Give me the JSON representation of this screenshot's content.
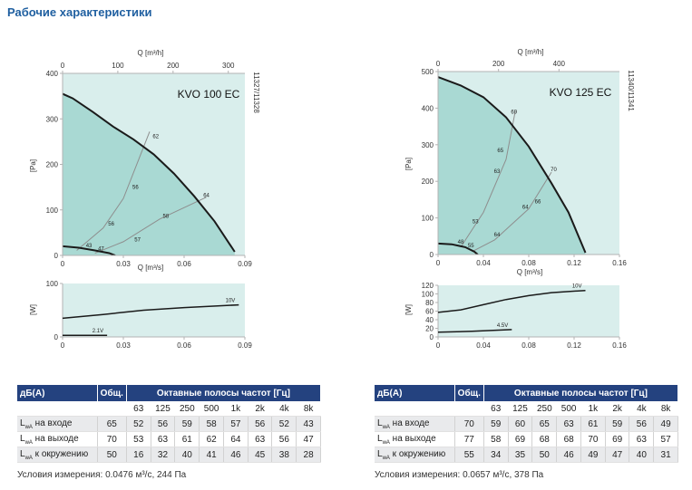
{
  "page_title": "Рабочие характеристики",
  "chart_data": [
    {
      "type": "line",
      "title": "KVO 100 EC",
      "code": "11327/11328",
      "top_xlabel": "Q [m³/h]",
      "top_ticks": [
        "0",
        "100",
        "200",
        "300"
      ],
      "top_tick_values": [
        0,
        100,
        200,
        300
      ],
      "xlabel": "Q [m³/s]",
      "ylabel": "[Pa]",
      "xlim": [
        0,
        0.09
      ],
      "ylim": [
        0,
        400
      ],
      "x_ticks": [
        "0",
        "0.03",
        "0.06",
        "0.09"
      ],
      "x_tick_values": [
        0,
        0.03,
        0.06,
        0.09
      ],
      "y_ticks": [
        "0",
        "100",
        "200",
        "300",
        "400"
      ],
      "y_tick_values": [
        0,
        100,
        200,
        300,
        400
      ],
      "series": [
        {
          "points": [
            [
              0,
              355
            ],
            [
              0.005,
              345
            ],
            [
              0.015,
              315
            ],
            [
              0.025,
              283
            ],
            [
              0.035,
              255
            ],
            [
              0.045,
              222
            ],
            [
              0.055,
              180
            ],
            [
              0.065,
              130
            ],
            [
              0.075,
              75
            ],
            [
              0.085,
              8
            ]
          ]
        },
        {
          "points": [
            [
              0,
              20
            ],
            [
              0.008,
              17
            ],
            [
              0.016,
              11
            ],
            [
              0.023,
              5
            ],
            [
              0.026,
              0
            ]
          ]
        }
      ],
      "system_curves": [
        {
          "points": [
            [
              0.007,
              11
            ],
            [
              0.02,
              60
            ],
            [
              0.03,
              125
            ],
            [
              0.043,
              272
            ]
          ]
        },
        {
          "points": [
            [
              0.016,
              5
            ],
            [
              0.03,
              30
            ],
            [
              0.048,
              80
            ],
            [
              0.071,
              128
            ]
          ]
        }
      ],
      "labels": [
        {
          "text": "62",
          "x": 0.046,
          "y": 262
        },
        {
          "text": "56",
          "x": 0.036,
          "y": 150
        },
        {
          "text": "56",
          "x": 0.024,
          "y": 70
        },
        {
          "text": "43",
          "x": 0.013,
          "y": 22
        },
        {
          "text": "47",
          "x": 0.019,
          "y": 15
        },
        {
          "text": "57",
          "x": 0.037,
          "y": 35
        },
        {
          "text": "58",
          "x": 0.051,
          "y": 87
        },
        {
          "text": "64",
          "x": 0.071,
          "y": 132
        }
      ],
      "power": {
        "ylabel": "[W]",
        "ylim": [
          0,
          100
        ],
        "y_ticks": [
          "0",
          "100"
        ],
        "y_tick_values": [
          0,
          100
        ],
        "series": [
          {
            "name": "10V",
            "points": [
              [
                0,
                35
              ],
              [
                0.02,
                42
              ],
              [
                0.04,
                50
              ],
              [
                0.06,
                55
              ],
              [
                0.087,
                60
              ]
            ]
          },
          {
            "name": "2.1V",
            "points": [
              [
                0,
                3
              ],
              [
                0.022,
                3
              ]
            ]
          }
        ]
      }
    },
    {
      "type": "line",
      "title": "KVO 125 EC",
      "code": "11340/11341",
      "top_xlabel": "Q [m³/h]",
      "top_ticks": [
        "0",
        "200",
        "400"
      ],
      "top_tick_values": [
        0,
        200,
        400
      ],
      "xlabel": "Q [m³/s]",
      "ylabel": "[Pa]",
      "xlim": [
        0,
        0.16
      ],
      "ylim": [
        0,
        500
      ],
      "x_ticks": [
        "0",
        "0.04",
        "0.08",
        "0.12",
        "0.16"
      ],
      "x_tick_values": [
        0,
        0.04,
        0.08,
        0.12,
        0.16
      ],
      "y_ticks": [
        "0",
        "100",
        "200",
        "300",
        "400",
        "500"
      ],
      "y_tick_values": [
        0,
        100,
        200,
        300,
        400,
        500
      ],
      "series": [
        {
          "points": [
            [
              0,
              485
            ],
            [
              0.02,
              462
            ],
            [
              0.04,
              430
            ],
            [
              0.06,
              375
            ],
            [
              0.08,
              295
            ],
            [
              0.1,
              195
            ],
            [
              0.115,
              115
            ],
            [
              0.13,
              5
            ]
          ]
        },
        {
          "points": [
            [
              0,
              30
            ],
            [
              0.012,
              28
            ],
            [
              0.024,
              20
            ],
            [
              0.032,
              8
            ],
            [
              0.035,
              0
            ]
          ]
        }
      ],
      "system_curves": [
        {
          "points": [
            [
              0.02,
              20
            ],
            [
              0.04,
              115
            ],
            [
              0.06,
              260
            ],
            [
              0.068,
              390
            ]
          ]
        },
        {
          "points": [
            [
              0.03,
              8
            ],
            [
              0.05,
              40
            ],
            [
              0.08,
              125
            ],
            [
              0.1,
              225
            ]
          ]
        }
      ],
      "labels": [
        {
          "text": "69",
          "x": 0.067,
          "y": 390
        },
        {
          "text": "65",
          "x": 0.055,
          "y": 285
        },
        {
          "text": "63",
          "x": 0.052,
          "y": 228
        },
        {
          "text": "53",
          "x": 0.033,
          "y": 90
        },
        {
          "text": "48",
          "x": 0.02,
          "y": 35
        },
        {
          "text": "55",
          "x": 0.029,
          "y": 25
        },
        {
          "text": "64",
          "x": 0.052,
          "y": 55
        },
        {
          "text": "64",
          "x": 0.077,
          "y": 130
        },
        {
          "text": "66",
          "x": 0.088,
          "y": 145
        },
        {
          "text": "70",
          "x": 0.102,
          "y": 233
        }
      ],
      "power": {
        "ylabel": "[W]",
        "ylim": [
          0,
          120
        ],
        "y_ticks": [
          "0",
          "20",
          "40",
          "60",
          "80",
          "100",
          "120"
        ],
        "y_tick_values": [
          0,
          20,
          40,
          60,
          80,
          100,
          120
        ],
        "series": [
          {
            "name": "10V",
            "points": [
              [
                0,
                57
              ],
              [
                0.02,
                63
              ],
              [
                0.04,
                75
              ],
              [
                0.06,
                87
              ],
              [
                0.08,
                96
              ],
              [
                0.1,
                103
              ],
              [
                0.13,
                108
              ]
            ]
          },
          {
            "name": "4.5V",
            "points": [
              [
                0,
                11
              ],
              [
                0.03,
                13
              ],
              [
                0.065,
                17
              ]
            ]
          }
        ]
      }
    }
  ],
  "tables": [
    {
      "headers": {
        "db": "дБ(A)",
        "total": "Общ.",
        "bands": "Октавные полосы частот [Гц]"
      },
      "frequencies": [
        "63",
        "125",
        "250",
        "500",
        "1k",
        "2k",
        "4k",
        "8k"
      ],
      "rows": [
        {
          "label": "L",
          "sub": "wA",
          "suffix": " на входе",
          "values": [
            "65",
            "52",
            "56",
            "59",
            "58",
            "57",
            "56",
            "52",
            "43"
          ]
        },
        {
          "label": "L",
          "sub": "wA",
          "suffix": " на выходе",
          "values": [
            "70",
            "53",
            "63",
            "61",
            "62",
            "64",
            "63",
            "56",
            "47"
          ]
        },
        {
          "label": "L",
          "sub": "wA",
          "suffix": " к окружению",
          "values": [
            "50",
            "16",
            "32",
            "40",
            "41",
            "46",
            "45",
            "38",
            "28"
          ]
        }
      ],
      "conditions": "Условия измерения: 0.0476 м³/с, 244 Па"
    },
    {
      "headers": {
        "db": "дБ(A)",
        "total": "Общ.",
        "bands": "Октавные полосы частот [Гц]"
      },
      "frequencies": [
        "63",
        "125",
        "250",
        "500",
        "1k",
        "2k",
        "4k",
        "8k"
      ],
      "rows": [
        {
          "label": "L",
          "sub": "wA",
          "suffix": " на входе",
          "values": [
            "70",
            "59",
            "60",
            "65",
            "63",
            "61",
            "59",
            "56",
            "49"
          ]
        },
        {
          "label": "L",
          "sub": "wA",
          "suffix": " на выходе",
          "values": [
            "77",
            "58",
            "69",
            "68",
            "68",
            "70",
            "69",
            "63",
            "57"
          ]
        },
        {
          "label": "L",
          "sub": "wA",
          "suffix": " к окружению",
          "values": [
            "55",
            "34",
            "35",
            "50",
            "46",
            "49",
            "47",
            "40",
            "31"
          ]
        }
      ],
      "conditions": "Условия измерения: 0.0657 м³/с, 378 Па"
    }
  ],
  "colors": {
    "plot_bg": "#d9eeec",
    "operating_area": "#a9d9d3",
    "curve": "#1a1a1a",
    "system_curve": "#8e8e8e",
    "axis": "#b3b3b3",
    "tick_text": "#333333",
    "table_header": "#24427f",
    "row_shade": "#e9eaec",
    "title": "#1f5fa0"
  }
}
